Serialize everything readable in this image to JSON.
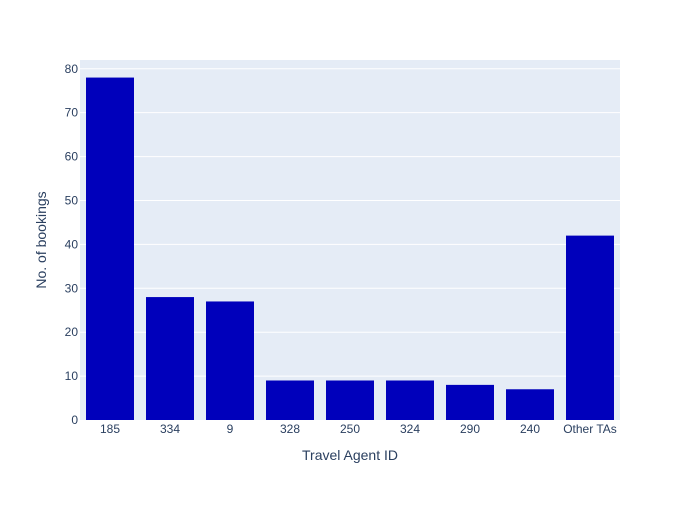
{
  "chart_data": {
    "type": "bar",
    "title": "",
    "xlabel": "Travel Agent ID",
    "ylabel": "No. of bookings",
    "categories": [
      "185",
      "334",
      "9",
      "328",
      "250",
      "324",
      "290",
      "240",
      "Other TAs"
    ],
    "values": [
      78,
      28,
      27,
      9,
      9,
      9,
      8,
      7,
      42
    ],
    "ylim": [
      0,
      82
    ],
    "yticks": [
      0,
      10,
      20,
      30,
      40,
      50,
      60,
      70,
      80
    ],
    "grid": true,
    "legend": "none",
    "colors": {
      "bar": "#0000bb",
      "plot_background": "#e5ecf6",
      "gridline": "#ffffff",
      "text": "#2a3f5f"
    }
  }
}
